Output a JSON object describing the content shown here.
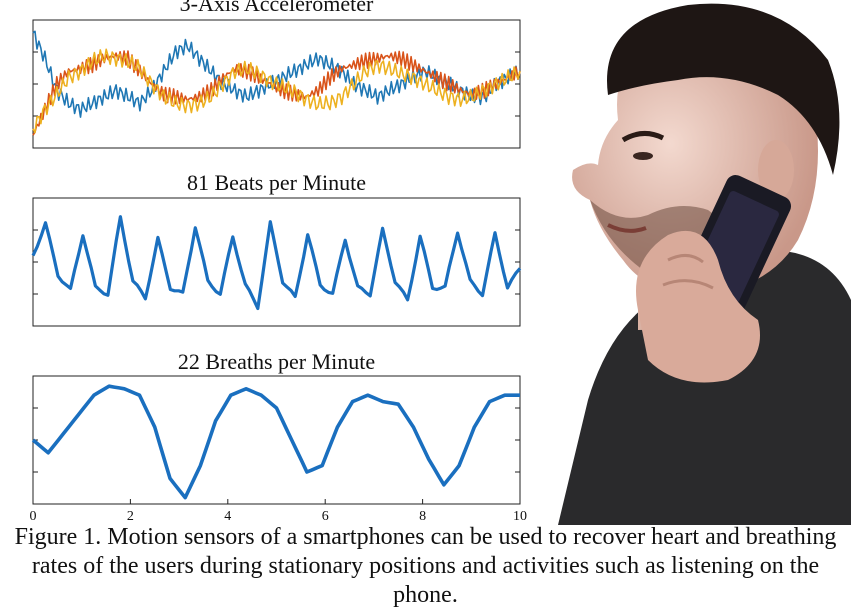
{
  "figure": {
    "caption": "Figure 1. Motion sensors of a smartphones can be used to recover heart and breathing rates of the users during stationary positions and activities such as listening on the phone.",
    "photo": "man-talking-on-smartphone"
  },
  "chart_data": [
    {
      "type": "line",
      "title": "3-Axis Accelerometer",
      "xlim": [
        0,
        10
      ],
      "series": [
        {
          "color": "#1f77b4",
          "values": [
            0.9,
            0.7,
            0.45,
            0.35,
            0.3,
            0.35,
            0.4,
            0.45,
            0.4,
            0.35,
            0.45,
            0.6,
            0.75,
            0.8,
            0.7,
            0.6,
            0.5,
            0.45,
            0.4,
            0.45,
            0.5,
            0.55,
            0.6,
            0.65,
            0.7,
            0.65,
            0.6,
            0.5,
            0.45,
            0.4,
            0.45,
            0.5,
            0.55,
            0.6,
            0.55,
            0.5,
            0.45,
            0.4,
            0.4,
            0.5,
            0.55,
            0.6
          ]
        },
        {
          "color": "#d95319",
          "values": [
            0.1,
            0.3,
            0.5,
            0.6,
            0.62,
            0.65,
            0.7,
            0.72,
            0.7,
            0.6,
            0.5,
            0.42,
            0.4,
            0.38,
            0.4,
            0.45,
            0.55,
            0.62,
            0.6,
            0.55,
            0.5,
            0.45,
            0.42,
            0.4,
            0.45,
            0.55,
            0.62,
            0.65,
            0.68,
            0.7,
            0.72,
            0.7,
            0.65,
            0.6,
            0.55,
            0.5,
            0.45,
            0.42,
            0.45,
            0.5,
            0.55,
            0.6
          ]
        },
        {
          "color": "#edb120",
          "values": [
            0.15,
            0.3,
            0.42,
            0.55,
            0.6,
            0.68,
            0.72,
            0.7,
            0.68,
            0.62,
            0.5,
            0.4,
            0.35,
            0.33,
            0.35,
            0.4,
            0.5,
            0.6,
            0.62,
            0.58,
            0.52,
            0.48,
            0.44,
            0.38,
            0.34,
            0.35,
            0.4,
            0.5,
            0.6,
            0.65,
            0.62,
            0.58,
            0.55,
            0.5,
            0.45,
            0.4,
            0.38,
            0.4,
            0.45,
            0.5,
            0.55,
            0.6
          ]
        }
      ]
    },
    {
      "type": "line",
      "title": "81 Beats per Minute",
      "xlim": [
        0,
        10
      ],
      "series": [
        {
          "color": "#1a6fbf",
          "values": [
            0.55,
            0.8,
            0.4,
            0.28,
            0.72,
            0.3,
            0.25,
            0.85,
            0.35,
            0.22,
            0.68,
            0.3,
            0.25,
            0.78,
            0.35,
            0.25,
            0.7,
            0.32,
            0.15,
            0.8,
            0.35,
            0.22,
            0.72,
            0.32,
            0.25,
            0.68,
            0.3,
            0.25,
            0.75,
            0.35,
            0.2,
            0.7,
            0.3,
            0.3,
            0.74,
            0.35,
            0.25,
            0.72,
            0.3,
            0.45
          ]
        }
      ]
    },
    {
      "type": "line",
      "title": "22 Breaths per Minute",
      "xlim": [
        0,
        10
      ],
      "xticks": [
        "0",
        "2",
        "4",
        "6",
        "8",
        "10"
      ],
      "series": [
        {
          "color": "#1a6fbf",
          "values": [
            0.5,
            0.4,
            0.55,
            0.7,
            0.85,
            0.92,
            0.9,
            0.85,
            0.6,
            0.2,
            0.05,
            0.3,
            0.65,
            0.85,
            0.9,
            0.85,
            0.75,
            0.5,
            0.25,
            0.3,
            0.6,
            0.8,
            0.85,
            0.8,
            0.78,
            0.6,
            0.35,
            0.15,
            0.3,
            0.6,
            0.8,
            0.85,
            0.85
          ]
        }
      ]
    }
  ]
}
